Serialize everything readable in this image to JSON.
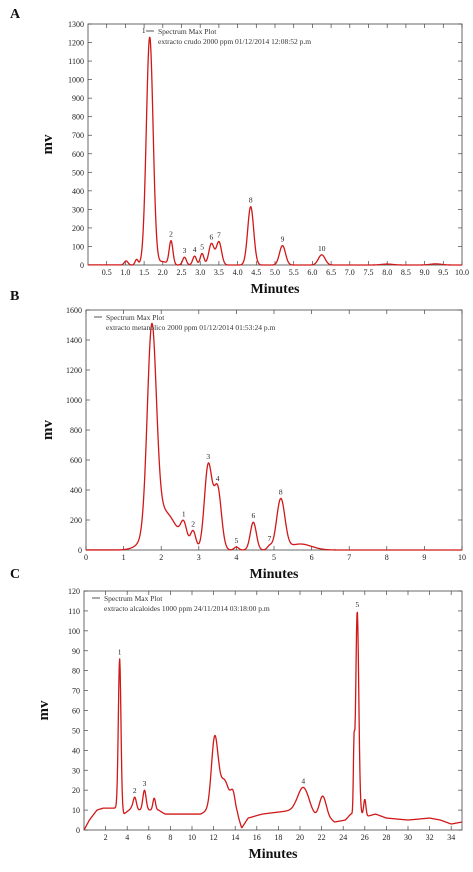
{
  "chart_data": [
    {
      "panel": "A",
      "type": "line",
      "xlabel": "Minutes",
      "ylabel": "mv",
      "xlim": [
        0,
        10
      ],
      "ylim": [
        0,
        1300
      ],
      "xticks": [
        0.5,
        1.0,
        1.5,
        2.0,
        2.5,
        3.0,
        3.5,
        4.0,
        4.5,
        5.0,
        5.5,
        6.0,
        6.5,
        7.0,
        7.5,
        8.0,
        8.5,
        9.0,
        9.5,
        10.0
      ],
      "xtick_labels": [
        "0.5",
        "1.0",
        "1.5",
        "2.0",
        "2.5",
        "3.0",
        "3.5",
        "4.0",
        "4.5",
        "5.0",
        "5.5",
        "6.0",
        "6.5",
        "7.0",
        "7.5",
        "8.0",
        "8.5",
        "9.0",
        "9.5",
        "10.0"
      ],
      "yticks": [
        0,
        100,
        200,
        300,
        400,
        500,
        600,
        700,
        800,
        900,
        1000,
        1100,
        1200,
        1300
      ],
      "ytick_labels": [
        "0",
        "100",
        "200",
        "300",
        "400",
        "500",
        "600",
        "700",
        "800",
        "900",
        "1000",
        "1100",
        "1200",
        "1300"
      ],
      "legend": [
        "Spectrum Max Plot",
        "extracto crudo 2000 ppm 01/12/2014 12:08:52 p.m"
      ],
      "legend_position": "top-left",
      "peaks": [
        {
          "label": "1",
          "x": 1.65,
          "y": 1230,
          "w": 0.09
        },
        {
          "label": "2",
          "x": 2.22,
          "y": 130,
          "w": 0.05
        },
        {
          "label": "3",
          "x": 2.58,
          "y": 42,
          "w": 0.05
        },
        {
          "label": "4",
          "x": 2.85,
          "y": 48,
          "w": 0.05
        },
        {
          "label": "5",
          "x": 3.05,
          "y": 62,
          "w": 0.05
        },
        {
          "label": "6",
          "x": 3.3,
          "y": 115,
          "w": 0.07
        },
        {
          "label": "7",
          "x": 3.5,
          "y": 125,
          "w": 0.07
        },
        {
          "label": "8",
          "x": 4.35,
          "y": 315,
          "w": 0.08
        },
        {
          "label": "9",
          "x": 5.2,
          "y": 105,
          "w": 0.08
        },
        {
          "label": "10",
          "x": 6.25,
          "y": 55,
          "w": 0.09
        }
      ],
      "extra_bumps": [
        {
          "x": 1.02,
          "y": 22,
          "w": 0.05
        },
        {
          "x": 1.3,
          "y": 30,
          "w": 0.04
        },
        {
          "x": 2.0,
          "y": 18,
          "w": 0.1
        },
        {
          "x": 8.0,
          "y": 5,
          "w": 0.15
        },
        {
          "x": 9.3,
          "y": 6,
          "w": 0.15
        }
      ]
    },
    {
      "panel": "B",
      "type": "line",
      "xlabel": "Minutes",
      "ylabel": "mv",
      "xlim": [
        0,
        10
      ],
      "ylim": [
        0,
        1600
      ],
      "xticks": [
        0,
        1,
        2,
        3,
        4,
        5,
        6,
        7,
        8,
        9,
        10
      ],
      "xtick_labels": [
        "0",
        "1",
        "2",
        "3",
        "4",
        "5",
        "6",
        "7",
        "8",
        "9",
        "10"
      ],
      "yticks": [
        0,
        200,
        400,
        600,
        800,
        1000,
        1200,
        1400,
        1600
      ],
      "ytick_labels": [
        "0",
        "200",
        "400",
        "600",
        "800",
        "1000",
        "1200",
        "1400",
        "1600"
      ],
      "legend": [
        "Spectrum Max Plot",
        "extracto metanolico 2000 ppm 01/12/2014 01:53:24 p.m"
      ],
      "legend_position": "top-left",
      "peaks": [
        {
          "label": "",
          "x": 1.75,
          "y": 1330,
          "w": 0.12
        },
        {
          "label": "",
          "x": 2.05,
          "y": 260,
          "w": 0.35
        },
        {
          "label": "1",
          "x": 2.6,
          "y": 120,
          "w": 0.08
        },
        {
          "label": "2",
          "x": 2.85,
          "y": 110,
          "w": 0.07
        },
        {
          "label": "3",
          "x": 3.25,
          "y": 560,
          "w": 0.1
        },
        {
          "label": "4",
          "x": 3.5,
          "y": 410,
          "w": 0.1
        },
        {
          "label": "5",
          "x": 4.0,
          "y": 20,
          "w": 0.06
        },
        {
          "label": "6",
          "x": 4.45,
          "y": 185,
          "w": 0.08
        },
        {
          "label": "7",
          "x": 4.88,
          "y": 25,
          "w": 0.06
        },
        {
          "label": "8",
          "x": 5.18,
          "y": 335,
          "w": 0.11
        }
      ],
      "extra_bumps": [
        {
          "x": 5.7,
          "y": 40,
          "w": 0.3
        }
      ]
    },
    {
      "panel": "C",
      "type": "line",
      "xlabel": "Minutes",
      "ylabel": "mv",
      "xlim": [
        0,
        35
      ],
      "ylim": [
        0,
        120
      ],
      "xticks": [
        2,
        4,
        6,
        8,
        10,
        12,
        14,
        16,
        18,
        20,
        22,
        24,
        26,
        28,
        30,
        32,
        34
      ],
      "xtick_labels": [
        "2",
        "4",
        "6",
        "8",
        "10",
        "12",
        "14",
        "16",
        "18",
        "20",
        "22",
        "24",
        "26",
        "28",
        "30",
        "32",
        "34"
      ],
      "yticks": [
        0,
        10,
        20,
        30,
        40,
        50,
        60,
        70,
        80,
        90,
        100,
        110,
        120
      ],
      "ytick_labels": [
        "0",
        "10",
        "20",
        "30",
        "40",
        "50",
        "60",
        "70",
        "80",
        "90",
        "100",
        "110",
        "120"
      ],
      "legend": [
        "Spectrum Max Plot",
        "extracto alcaloides 1000 ppm 24/11/2014 03:18:00 p.m"
      ],
      "legend_position": "top-left",
      "peaks": [
        {
          "label": "1",
          "x": 3.3,
          "y": 76,
          "w": 0.12
        },
        {
          "label": "2",
          "x": 4.7,
          "y": 6,
          "w": 0.15
        },
        {
          "label": "3",
          "x": 5.6,
          "y": 10,
          "w": 0.15
        },
        {
          "label": "",
          "x": 6.5,
          "y": 6,
          "w": 0.12
        },
        {
          "label": "",
          "x": 12.1,
          "y": 34,
          "w": 0.3
        },
        {
          "label": "",
          "x": 13.0,
          "y": 12,
          "w": 0.4
        },
        {
          "label": "",
          "x": 13.8,
          "y": 8,
          "w": 0.2
        },
        {
          "label": "4",
          "x": 20.3,
          "y": 12,
          "w": 0.5
        },
        {
          "label": "",
          "x": 22.1,
          "y": 10,
          "w": 0.3
        },
        {
          "label": "5",
          "x": 25.3,
          "y": 102,
          "w": 0.14
        },
        {
          "label": "",
          "x": 25.0,
          "y": 30,
          "w": 0.06
        },
        {
          "label": "",
          "x": 26.0,
          "y": 8,
          "w": 0.1
        }
      ],
      "baseline": [
        [
          0,
          0
        ],
        [
          0.5,
          5
        ],
        [
          1.2,
          10
        ],
        [
          1.8,
          11
        ],
        [
          2.8,
          11
        ],
        [
          3.1,
          11
        ],
        [
          3.7,
          8
        ],
        [
          4.4,
          11
        ],
        [
          5.0,
          10
        ],
        [
          5.9,
          10
        ],
        [
          6.9,
          10
        ],
        [
          7.5,
          8
        ],
        [
          8.5,
          8
        ],
        [
          9.5,
          8
        ],
        [
          10.8,
          8
        ],
        [
          11.5,
          10
        ],
        [
          12.5,
          14
        ],
        [
          13.5,
          12
        ],
        [
          14.2,
          8
        ],
        [
          14.6,
          1
        ],
        [
          15.2,
          6
        ],
        [
          16.5,
          8
        ],
        [
          18.0,
          9
        ],
        [
          19.5,
          10
        ],
        [
          20.8,
          9
        ],
        [
          21.4,
          7
        ],
        [
          22.5,
          7
        ],
        [
          23.2,
          4
        ],
        [
          24.2,
          5
        ],
        [
          24.7,
          8
        ],
        [
          25.6,
          8
        ],
        [
          26.3,
          7
        ],
        [
          27.0,
          8
        ],
        [
          28.0,
          6
        ],
        [
          30.0,
          5
        ],
        [
          32.0,
          6
        ],
        [
          33.0,
          5
        ],
        [
          34.0,
          3
        ],
        [
          35,
          4
        ]
      ]
    }
  ]
}
